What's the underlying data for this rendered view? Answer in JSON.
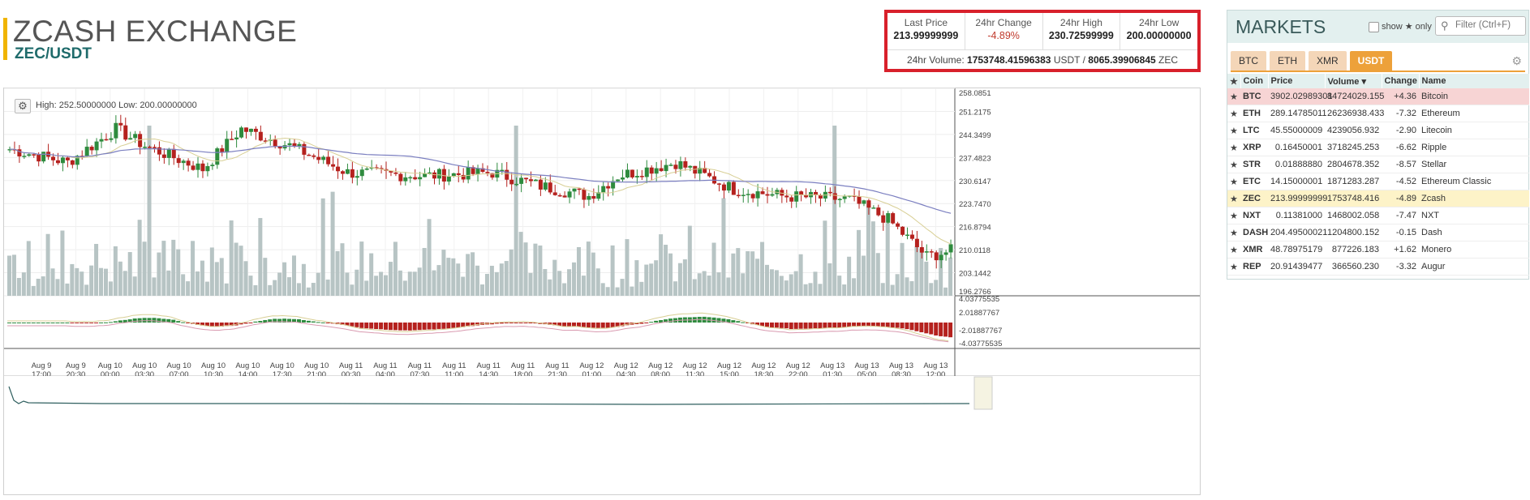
{
  "header": {
    "title": "ZCASH EXCHANGE",
    "pair": "ZEC/USDT"
  },
  "ticker": {
    "last_price_label": "Last Price",
    "last_price": "213.99999999",
    "change_label": "24hr Change",
    "change": "-4.89%",
    "high_label": "24hr High",
    "high": "230.72599999",
    "low_label": "24hr Low",
    "low": "200.00000000",
    "volume_label": "24hr Volume:",
    "volume_usdt": "1753748.41596383",
    "volume_usdt_unit": "USDT /",
    "volume_zec": "8065.39906845",
    "volume_zec_unit": "ZEC"
  },
  "chart": {
    "high_low_text": "High: 252.50000000  Low: 200.00000000",
    "price_axis": [
      "258.0851",
      "251.2175",
      "244.3499",
      "237.4823",
      "230.6147",
      "223.7470",
      "216.8794",
      "210.0118",
      "203.1442",
      "196.2766"
    ],
    "macd_axis": [
      "4.03775535",
      "2.01887767",
      "-2.01887767",
      "-4.03775535"
    ],
    "time_labels": [
      [
        "Aug 9",
        "17:00"
      ],
      [
        "Aug 9",
        "20:30"
      ],
      [
        "Aug 10",
        "00:00"
      ],
      [
        "Aug 10",
        "03:30"
      ],
      [
        "Aug 10",
        "07:00"
      ],
      [
        "Aug 10",
        "10:30"
      ],
      [
        "Aug 10",
        "14:00"
      ],
      [
        "Aug 10",
        "17:30"
      ],
      [
        "Aug 10",
        "21:00"
      ],
      [
        "Aug 11",
        "00:30"
      ],
      [
        "Aug 11",
        "04:00"
      ],
      [
        "Aug 11",
        "07:30"
      ],
      [
        "Aug 11",
        "11:00"
      ],
      [
        "Aug 11",
        "14:30"
      ],
      [
        "Aug 11",
        "18:00"
      ],
      [
        "Aug 11",
        "21:30"
      ],
      [
        "Aug 12",
        "01:00"
      ],
      [
        "Aug 12",
        "04:30"
      ],
      [
        "Aug 12",
        "08:00"
      ],
      [
        "Aug 12",
        "11:30"
      ],
      [
        "Aug 12",
        "15:00"
      ],
      [
        "Aug 12",
        "18:30"
      ],
      [
        "Aug 12",
        "22:00"
      ],
      [
        "Aug 13",
        "01:30"
      ],
      [
        "Aug 13",
        "05:00"
      ],
      [
        "Aug 13",
        "08:30"
      ],
      [
        "Aug 13",
        "12:00"
      ]
    ],
    "colors": {
      "up": "#2e8b3e",
      "down": "#b5211e",
      "volume": "#b7c4c4",
      "ma_long": "#7b7fc0",
      "ma_short": "#d8cf95",
      "macd_signal": "#d99ab0"
    }
  },
  "markets": {
    "title": "MARKETS",
    "show_label": "show ★ only",
    "filter_placeholder": "Filter (Ctrl+F)",
    "tabs": [
      "BTC",
      "ETH",
      "XMR",
      "USDT"
    ],
    "active_tab": "USDT",
    "columns": [
      "Coin",
      "Price",
      "Volume ▾",
      "Change",
      "Name"
    ],
    "rows": [
      {
        "coin": "BTC",
        "price": "3902.02989301",
        "volume": "84724029.155",
        "change": "+4.36",
        "name": "Bitcoin",
        "state": "sel"
      },
      {
        "coin": "ETH",
        "price": "289.14785011",
        "volume": "26236938.433",
        "change": "-7.32",
        "name": "Ethereum",
        "state": ""
      },
      {
        "coin": "LTC",
        "price": "45.55000009",
        "volume": "4239056.932",
        "change": "-2.90",
        "name": "Litecoin",
        "state": ""
      },
      {
        "coin": "XRP",
        "price": "0.16450001",
        "volume": "3718245.253",
        "change": "-6.62",
        "name": "Ripple",
        "state": ""
      },
      {
        "coin": "STR",
        "price": "0.01888880",
        "volume": "2804678.352",
        "change": "-8.57",
        "name": "Stellar",
        "state": ""
      },
      {
        "coin": "ETC",
        "price": "14.15000001",
        "volume": "1871283.287",
        "change": "-4.52",
        "name": "Ethereum Classic",
        "state": ""
      },
      {
        "coin": "ZEC",
        "price": "213.99999999",
        "volume": "1753748.416",
        "change": "-4.89",
        "name": "Zcash",
        "state": "cur"
      },
      {
        "coin": "NXT",
        "price": "0.11381000",
        "volume": "1468002.058",
        "change": "-7.47",
        "name": "NXT",
        "state": ""
      },
      {
        "coin": "DASH",
        "price": "204.49500021",
        "volume": "1204800.152",
        "change": "-0.15",
        "name": "Dash",
        "state": ""
      },
      {
        "coin": "XMR",
        "price": "48.78975179",
        "volume": "877226.183",
        "change": "+1.62",
        "name": "Monero",
        "state": ""
      },
      {
        "coin": "REP",
        "price": "20.91439477",
        "volume": "366560.230",
        "change": "-3.32",
        "name": "Augur",
        "state": ""
      }
    ]
  }
}
